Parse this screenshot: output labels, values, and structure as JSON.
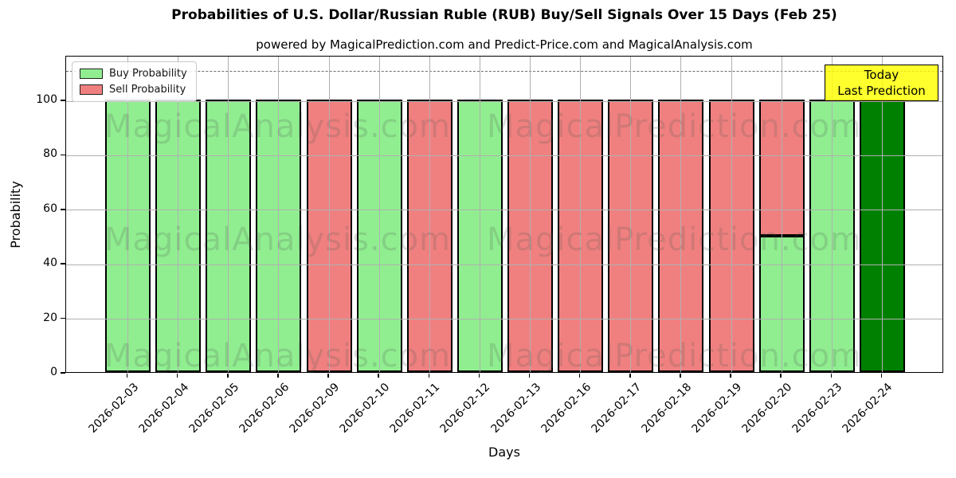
{
  "chart_data": {
    "type": "bar",
    "stacked": true,
    "title": "Probabilities of U.S. Dollar/Russian Ruble (RUB) Buy/Sell Signals Over 15 Days (Feb 25)",
    "subtitle": "powered by MagicalPrediction.com and Predict-Price.com and MagicalAnalysis.com",
    "xlabel": "Days",
    "ylabel": "Probability",
    "ylim": [
      0,
      116
    ],
    "yticks": [
      0,
      20,
      40,
      60,
      80,
      100
    ],
    "grid": "on",
    "grid_above_bars": true,
    "dashed_line_y": 111,
    "categories": [
      "2026-02-03",
      "2026-02-04",
      "2026-02-05",
      "2026-02-06",
      "2026-02-09",
      "2026-02-10",
      "2026-02-11",
      "2026-02-12",
      "2026-02-13",
      "2026-02-16",
      "2026-02-17",
      "2026-02-18",
      "2026-02-19",
      "2026-02-20",
      "2026-02-23",
      "2026-02-24"
    ],
    "series": [
      {
        "name": "Buy Probability",
        "color": "#90ee90",
        "values": [
          100,
          100,
          100,
          100,
          0,
          100,
          0,
          100,
          0,
          0,
          0,
          0,
          0,
          50,
          100,
          0
        ]
      },
      {
        "name": "Sell Probability",
        "color": "#f08080",
        "values": [
          0,
          0,
          0,
          0,
          100,
          0,
          100,
          0,
          100,
          100,
          100,
          100,
          100,
          50,
          0,
          0
        ]
      },
      {
        "name": "Today Last Prediction",
        "color": "#008000",
        "values": [
          0,
          0,
          0,
          0,
          0,
          0,
          0,
          0,
          0,
          0,
          0,
          0,
          0,
          0,
          0,
          100
        ]
      }
    ],
    "legend": {
      "position": "upper left",
      "entries": [
        {
          "label": "Buy Probability",
          "color": "#90ee90"
        },
        {
          "label": "Sell Probability",
          "color": "#f08080"
        }
      ]
    },
    "annotation": {
      "lines": [
        "Today",
        "Last Prediction"
      ],
      "bg_color": "#ffff00",
      "border_color": "#000000"
    },
    "watermarks": [
      "MagicalAnalysis.com",
      "MagicalPrediction.com"
    ]
  }
}
